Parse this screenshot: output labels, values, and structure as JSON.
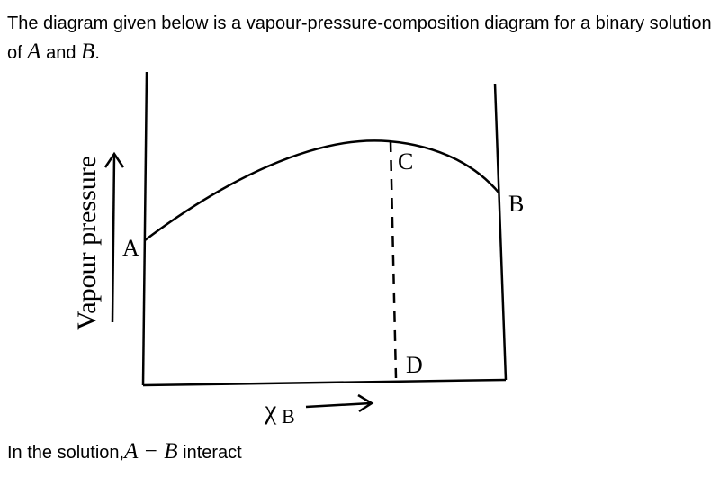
{
  "question": {
    "intro": "The diagram given below is a vapour-pressure-composition diagram for a binary solution of",
    "symbol_a": "A",
    "conjunction": "and",
    "symbol_b": "B",
    "end": "."
  },
  "diagram": {
    "axis_y_label": "Vapour pressure",
    "axis_x_symbol": "χ",
    "axis_x_subscript": "B",
    "point_labels": [
      "A",
      "B",
      "C",
      "D"
    ]
  },
  "footer": {
    "text": "In the solution,",
    "expression": "A − B",
    "trail": "interact"
  }
}
